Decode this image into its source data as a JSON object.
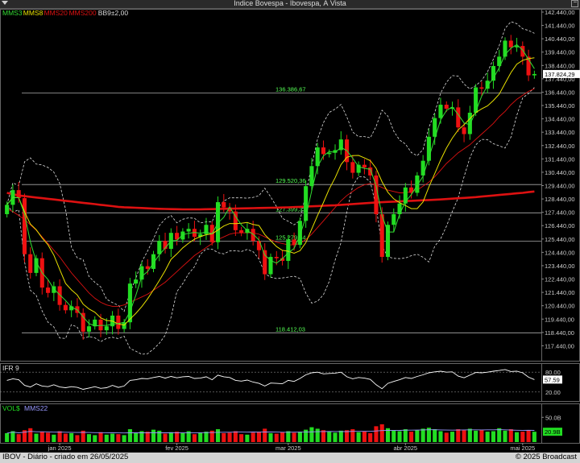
{
  "window": {
    "title": "Índice Bovespa - Ibovespa, À Vista"
  },
  "legend": [
    {
      "label": "MMS3",
      "color": "#33dd33"
    },
    {
      "label": "MMS8",
      "color": "#e8e000"
    },
    {
      "label": "MMS20",
      "color": "#dd1111"
    },
    {
      "label": "MMS200",
      "color": "#dd1111"
    },
    {
      "label": "BB9±2,00",
      "color": "#dddddd"
    }
  ],
  "indicators": {
    "ifr_label": "IFR 9",
    "ifr_ticks": [
      "80.00",
      "20.00"
    ],
    "ifr_value": "57.59",
    "vol_label": "VOL$",
    "vol_ma_label": "MMS22",
    "vol_ticks": [
      "50.0B"
    ],
    "vol_value": "20.9B"
  },
  "footer": {
    "left": "IBOV - Diário - criado em 26/05/2025",
    "right": "© 2025 Broadcast"
  },
  "colors": {
    "up": "#22dd22",
    "down": "#ee1111",
    "mms3": "#33dd33",
    "mms8": "#e8e000",
    "mms20": "#dd1111",
    "mms200": "#dd1111",
    "bollinger": "#dddddd"
  },
  "chart_data": {
    "type": "candlestick",
    "title": "Índice Bovespa - Ibovespa, À Vista",
    "price_axis": {
      "ylim": [
        116440,
        142440
      ],
      "ticks": [
        "142.440,00",
        "141.440,00",
        "140.440,00",
        "139.440,00",
        "138.440,00",
        "137.440,00",
        "136.440,00",
        "135.440,00",
        "134.440,00",
        "133.440,00",
        "132.440,00",
        "131.440,00",
        "130.440,00",
        "129.440,00",
        "128.440,00",
        "127.440,00",
        "126.440,00",
        "125.440,00",
        "124.440,00",
        "123.440,00",
        "122.440,00",
        "121.440,00",
        "120.440,00",
        "119.440,00",
        "118.440,00",
        "117.440,00"
      ]
    },
    "last_price_label": "137.824,29",
    "levels": [
      {
        "label": "136.386,67",
        "value": 136386.67
      },
      {
        "label": "129.520,36",
        "value": 129520.36
      },
      {
        "label": "127.399,33",
        "value": 127399.33
      },
      {
        "label": "125.279,34",
        "value": 125279.34
      },
      {
        "label": "118.412,03",
        "value": 118412.03
      }
    ],
    "x_labels": [
      "jan 2025",
      "fev 2025",
      "mar 2025",
      "abr 2025",
      "mai 2025"
    ],
    "x_label_index": [
      9,
      29,
      48,
      68,
      88
    ],
    "close": [
      127999,
      129100,
      128500,
      124300,
      122900,
      124000,
      121800,
      121400,
      121900,
      120500,
      120100,
      120400,
      119900,
      118500,
      118900,
      119400,
      118600,
      118900,
      119700,
      118700,
      119200,
      122100,
      122400,
      123400,
      123200,
      124300,
      125300,
      124700,
      125900,
      125400,
      126000,
      126200,
      125600,
      125800,
      126500,
      125200,
      128200,
      127800,
      127500,
      126100,
      125900,
      126200,
      125300,
      124600,
      122800,
      124100,
      124000,
      123800,
      125400,
      125000,
      126800,
      129400,
      130900,
      132300,
      131800,
      131900,
      132100,
      132900,
      131200,
      130400,
      131000,
      130800,
      130200,
      127300,
      124100,
      126500,
      127300,
      128100,
      129300,
      128900,
      130200,
      131300,
      133100,
      134500,
      135500,
      135200,
      135300,
      133800,
      133300,
      134900,
      136800,
      136700,
      137300,
      138400,
      139100,
      140300,
      139800,
      139900,
      139100,
      137700,
      137800
    ],
    "open": [
      127300,
      128000,
      129100,
      128500,
      124300,
      122900,
      124000,
      121800,
      121400,
      121900,
      120500,
      120100,
      120400,
      119900,
      118500,
      118900,
      119400,
      118600,
      118900,
      119700,
      118700,
      119200,
      122100,
      122400,
      123400,
      123200,
      124300,
      125300,
      124700,
      125900,
      125400,
      126000,
      126200,
      125600,
      125800,
      126500,
      125200,
      128200,
      127800,
      127500,
      126100,
      125900,
      126200,
      125300,
      124600,
      122800,
      124100,
      124000,
      123800,
      125400,
      125000,
      126800,
      129400,
      130900,
      132300,
      131800,
      131900,
      132100,
      132900,
      131200,
      130400,
      131000,
      130800,
      130200,
      127300,
      124100,
      126500,
      127300,
      128100,
      129300,
      128900,
      130200,
      131300,
      133100,
      134500,
      135500,
      135200,
      135300,
      133800,
      133300,
      134900,
      136800,
      136700,
      137300,
      138400,
      139100,
      140300,
      139800,
      139900,
      139100,
      137700
    ],
    "mms20": [
      127700,
      127500,
      127200,
      126900,
      126500,
      126100,
      125600,
      125100,
      124600,
      124100,
      123500,
      122900,
      122400,
      121900,
      121400,
      121000,
      120700,
      120500,
      120400,
      120400,
      120500,
      120700,
      120900,
      121100,
      121300,
      121600,
      121900,
      122200,
      122600,
      123000,
      123400,
      123800,
      124200,
      124500,
      124800,
      125100,
      125400,
      125600,
      125800,
      125900,
      125900,
      125900,
      125900,
      125800,
      125600,
      125400,
      125200,
      125100,
      125000,
      125000,
      125100,
      125400,
      125800,
      126300,
      126800,
      127300,
      127800,
      128300,
      128700,
      129000,
      129300,
      129500,
      129600,
      129500,
      129300,
      129100,
      129000,
      128900,
      128900,
      129000,
      129100,
      129400,
      129700,
      130100,
      130600,
      131100,
      131500,
      131900,
      132200,
      132500,
      132900,
      133300,
      133700,
      134100,
      134600,
      135000,
      135500,
      135900,
      136200,
      136500,
      136700
    ],
    "mms200": [
      128900,
      128800,
      128700,
      128650,
      128600,
      128550,
      128500,
      128450,
      128400,
      128350,
      128300,
      128250,
      128200,
      128150,
      128100,
      128050,
      128000,
      127950,
      127900,
      127850,
      127820,
      127800,
      127780,
      127760,
      127740,
      127720,
      127700,
      127690,
      127680,
      127670,
      127660,
      127660,
      127660,
      127660,
      127670,
      127680,
      127690,
      127700,
      127710,
      127720,
      127730,
      127740,
      127750,
      127760,
      127770,
      127780,
      127790,
      127800,
      127810,
      127830,
      127850,
      127870,
      127890,
      127910,
      127930,
      127950,
      127970,
      128000,
      128030,
      128060,
      128090,
      128120,
      128150,
      128180,
      128200,
      128220,
      128240,
      128260,
      128280,
      128300,
      128320,
      128340,
      128360,
      128380,
      128400,
      128430,
      128460,
      128490,
      128520,
      128550,
      128580,
      128620,
      128660,
      128700,
      128740,
      128780,
      128820,
      128860,
      128900,
      128950,
      129000
    ],
    "ifr": [
      55,
      60,
      57,
      40,
      35,
      45,
      38,
      36,
      42,
      35,
      33,
      36,
      34,
      28,
      32,
      36,
      31,
      33,
      40,
      34,
      38,
      55,
      57,
      61,
      60,
      64,
      67,
      62,
      67,
      63,
      66,
      67,
      61,
      62,
      66,
      57,
      71,
      66,
      64,
      55,
      53,
      56,
      50,
      46,
      38,
      47,
      46,
      45,
      55,
      52,
      61,
      72,
      78,
      80,
      75,
      76,
      77,
      80,
      66,
      60,
      64,
      62,
      58,
      42,
      30,
      46,
      52,
      57,
      64,
      61,
      67,
      72,
      78,
      81,
      83,
      80,
      81,
      68,
      63,
      71,
      79,
      78,
      80,
      83,
      85,
      88,
      82,
      83,
      78,
      65,
      57.59
    ],
    "volume_b": [
      18,
      22,
      16,
      24,
      28,
      17,
      21,
      19,
      15,
      22,
      17,
      18,
      14,
      23,
      16,
      14,
      20,
      15,
      17,
      16,
      14,
      26,
      18,
      22,
      21,
      25,
      23,
      17,
      20,
      21,
      18,
      22,
      16,
      19,
      21,
      23,
      26,
      18,
      19,
      22,
      16,
      15,
      19,
      21,
      27,
      18,
      17,
      20,
      22,
      19,
      21,
      25,
      30,
      27,
      24,
      21,
      19,
      23,
      24,
      26,
      20,
      22,
      18,
      32,
      36,
      28,
      24,
      22,
      26,
      21,
      24,
      27,
      29,
      26,
      22,
      19,
      21,
      26,
      24,
      27,
      23,
      25,
      21,
      22,
      28,
      23,
      26,
      20,
      21,
      24,
      20.9
    ],
    "vol_ylim": [
      0,
      70
    ]
  }
}
